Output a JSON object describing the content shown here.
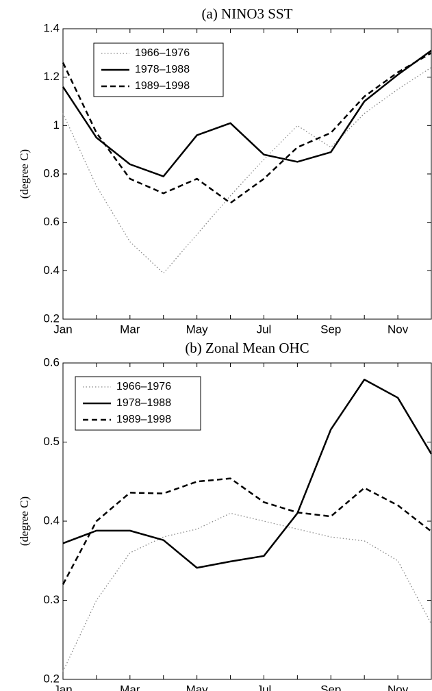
{
  "chart_data": [
    {
      "type": "line",
      "title": "(a) NINO3 SST",
      "y_label": "(degree C)",
      "categories": [
        "Jan",
        null,
        "Mar",
        null,
        "May",
        null,
        "Jul",
        null,
        "Sep",
        null,
        "Nov",
        null
      ],
      "ylim": [
        0.2,
        1.4
      ],
      "yticks": [
        0.2,
        0.4,
        0.6,
        0.8,
        1,
        1.2,
        1.4
      ],
      "legend": "upper left",
      "series": [
        {
          "name": "1966–1976",
          "color": "#888888",
          "dash": "dotted",
          "values": [
            1.05,
            0.75,
            0.52,
            0.39,
            0.55,
            0.71,
            0.86,
            1.0,
            0.91,
            1.05,
            1.15,
            1.24
          ]
        },
        {
          "name": "1978–1988",
          "color": "#000000",
          "dash": "solid",
          "values": [
            1.16,
            0.95,
            0.84,
            0.79,
            0.96,
            1.01,
            0.88,
            0.85,
            0.89,
            1.1,
            1.21,
            1.31
          ]
        },
        {
          "name": "1989–1998",
          "color": "#000000",
          "dash": "dashed",
          "values": [
            1.26,
            0.97,
            0.78,
            0.72,
            0.78,
            0.68,
            0.78,
            0.91,
            0.97,
            1.12,
            1.22,
            1.3
          ]
        }
      ]
    },
    {
      "type": "line",
      "title": "(b) Zonal Mean OHC",
      "y_label": "(degree C)",
      "categories": [
        "Jan",
        null,
        "Mar",
        null,
        "May",
        null,
        "Jul",
        null,
        "Sep",
        null,
        "Nov",
        null
      ],
      "ylim": [
        0.2,
        0.6
      ],
      "yticks": [
        0.2,
        0.3,
        0.4,
        0.5,
        0.6
      ],
      "legend": "upper left",
      "series": [
        {
          "name": "1966–1976",
          "color": "#888888",
          "dash": "dotted",
          "values": [
            0.21,
            0.3,
            0.36,
            0.38,
            0.39,
            0.41,
            0.4,
            0.39,
            0.38,
            0.375,
            0.35,
            0.27
          ]
        },
        {
          "name": "1978–1988",
          "color": "#000000",
          "dash": "solid",
          "values": [
            0.372,
            0.388,
            0.388,
            0.376,
            0.341,
            0.349,
            0.356,
            0.41,
            0.516,
            0.579,
            0.556,
            0.485
          ]
        },
        {
          "name": "1989–1998",
          "color": "#000000",
          "dash": "dashed",
          "values": [
            0.32,
            0.4,
            0.436,
            0.435,
            0.45,
            0.454,
            0.424,
            0.411,
            0.406,
            0.442,
            0.42,
            0.387
          ]
        }
      ]
    }
  ]
}
